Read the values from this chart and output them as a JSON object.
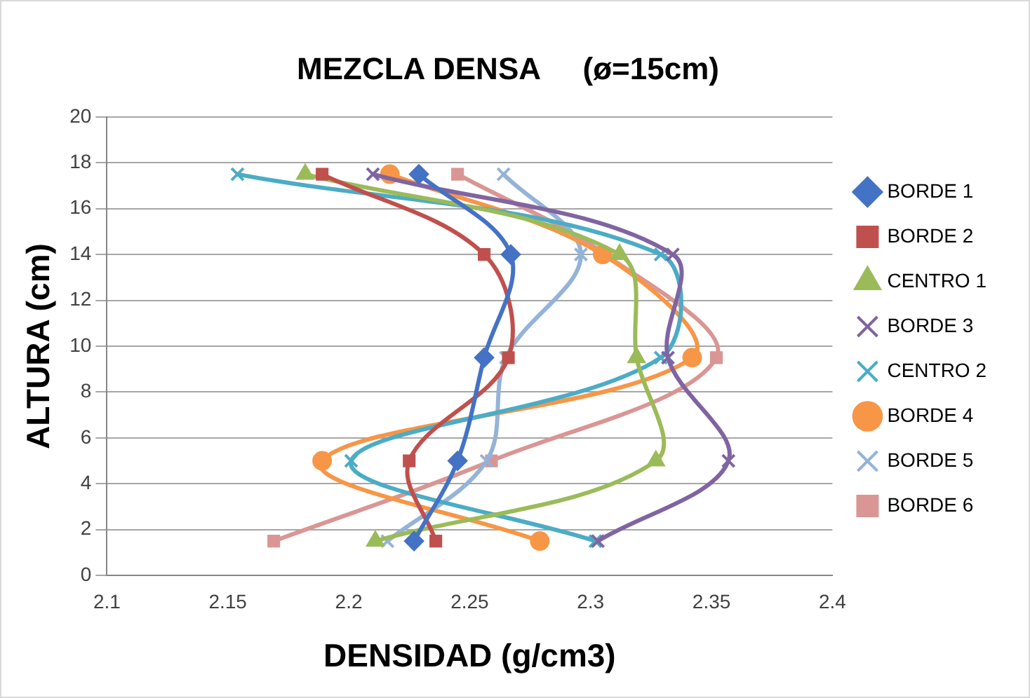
{
  "chart_data": {
    "type": "line",
    "title": "MEZCLA DENSA     (ø=15cm)",
    "xlabel": "DENSIDAD (g/cm3)",
    "ylabel": "ALTURA (cm)",
    "xlim": [
      2.1,
      2.4
    ],
    "xticks": [
      2.1,
      2.15,
      2.2,
      2.25,
      2.3,
      2.35,
      2.4
    ],
    "ylim": [
      0,
      20
    ],
    "yticks": [
      0,
      2,
      4,
      6,
      8,
      10,
      12,
      14,
      16,
      18,
      20
    ],
    "grid": "y",
    "legend": "right",
    "line_style": "solid",
    "series": [
      {
        "name": "BORDE 1",
        "color": "#4472c4",
        "marker": "diamond",
        "x": [
          2.227,
          2.245,
          2.256,
          2.267,
          2.229
        ],
        "values": [
          1.5,
          5,
          9.5,
          14,
          17.5
        ]
      },
      {
        "name": "BORDE 2",
        "color": "#c0504d",
        "marker": "square",
        "x": [
          2.236,
          2.225,
          2.266,
          2.256,
          2.189
        ],
        "values": [
          1.5,
          5,
          9.5,
          14,
          17.5
        ]
      },
      {
        "name": "CENTRO 1",
        "color": "#9bbb59",
        "marker": "triangle",
        "x": [
          2.211,
          2.327,
          2.319,
          2.312,
          2.182
        ],
        "values": [
          1.5,
          5,
          9.5,
          14,
          17.5
        ]
      },
      {
        "name": "BORDE 3",
        "color": "#8064a2",
        "marker": "cross",
        "x": [
          2.303,
          2.357,
          2.332,
          2.334,
          2.21
        ],
        "values": [
          1.5,
          5,
          9.5,
          14,
          17.5
        ]
      },
      {
        "name": "CENTRO 2",
        "color": "#4bacc6",
        "marker": "cross",
        "x": [
          2.302,
          2.201,
          2.329,
          2.329,
          2.154
        ],
        "values": [
          1.5,
          5,
          9.5,
          14,
          17.5
        ]
      },
      {
        "name": "BORDE 4",
        "color": "#f79646",
        "marker": "circle",
        "x": [
          2.279,
          2.189,
          2.342,
          2.305,
          2.217
        ],
        "values": [
          1.5,
          5,
          9.5,
          14,
          17.5
        ]
      },
      {
        "name": "BORDE 5",
        "color": "#95b3d7",
        "marker": "cross",
        "x": [
          2.216,
          2.257,
          2.265,
          2.296,
          2.264
        ],
        "values": [
          1.5,
          5,
          9.5,
          14,
          17.5
        ]
      },
      {
        "name": "BORDE 6",
        "color": "#d99694",
        "marker": "square",
        "x": [
          2.169,
          2.259,
          2.352,
          2.306,
          2.245
        ],
        "values": [
          1.5,
          5,
          9.5,
          14,
          17.5
        ]
      }
    ]
  }
}
